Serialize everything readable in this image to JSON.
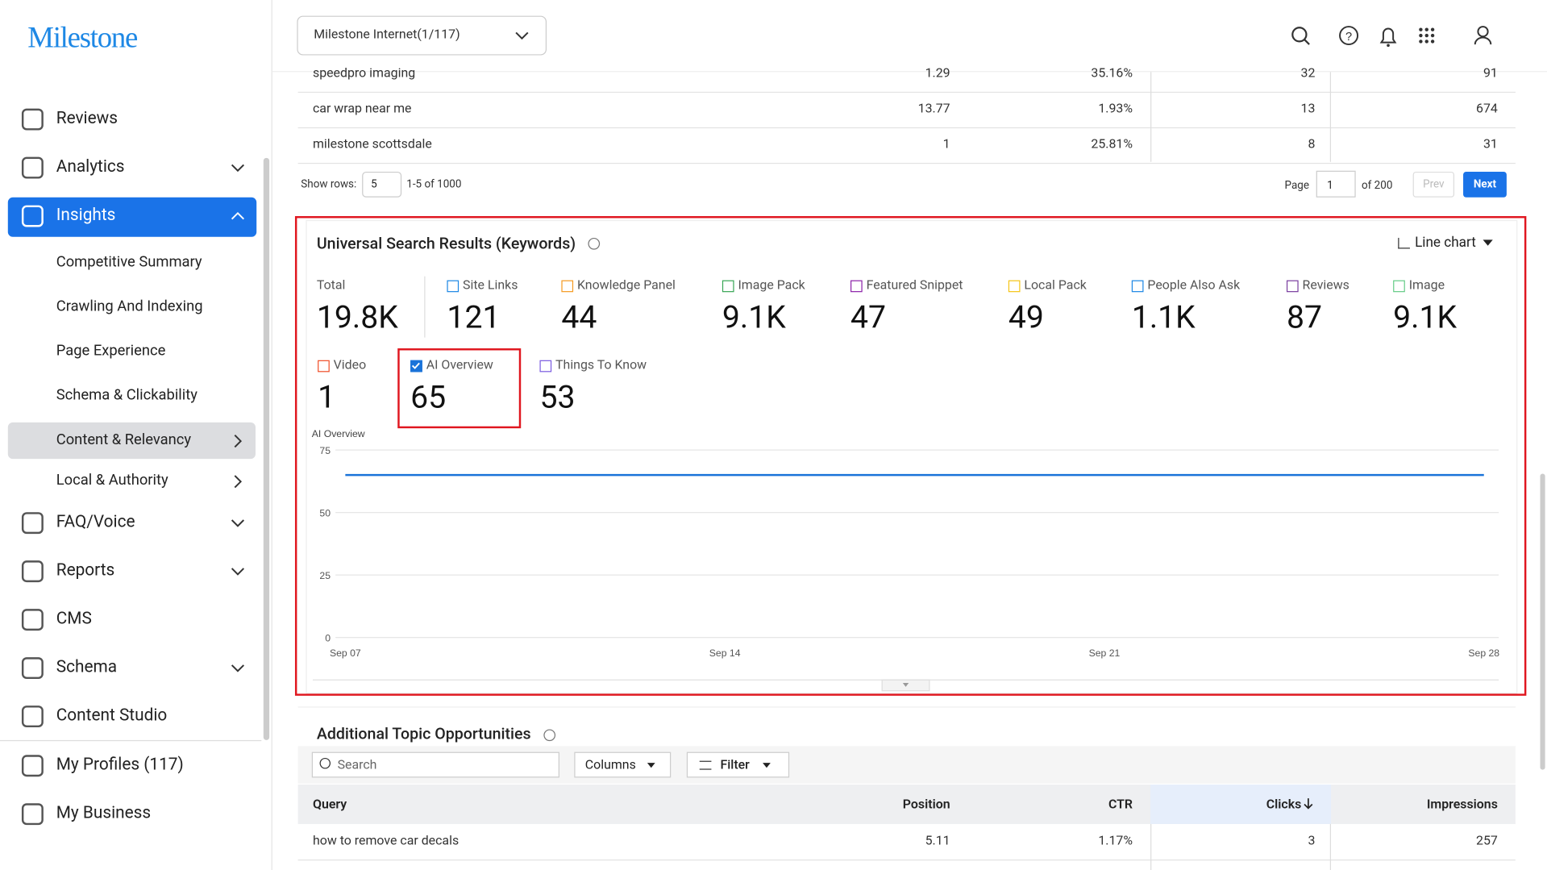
{
  "header": {
    "logo": "Milestone",
    "account": "Milestone Internet(1/117)"
  },
  "sidebar": {
    "items": [
      "Reviews",
      "Analytics",
      "Insights",
      "Competitive Summary",
      "Crawling And Indexing",
      "Page Experience",
      "Schema & Clickability",
      "Content & Relevancy",
      "Local & Authority",
      "FAQ/Voice",
      "Reports",
      "CMS",
      "Schema",
      "Content Studio",
      "My Profiles (117)",
      "My Business"
    ]
  },
  "top_table": {
    "rows": [
      [
        "speedpro imaging",
        "1.29",
        "35.16%",
        "32",
        "91"
      ],
      [
        "car wrap near me",
        "13.77",
        "1.93%",
        "13",
        "674"
      ],
      [
        "milestone scottsdale",
        "1",
        "25.81%",
        "8",
        "31"
      ]
    ],
    "show_rows_label": "Show rows:",
    "rows_value": "5",
    "range": "1-5 of 1000",
    "page_label": "Page",
    "page": "1",
    "of_pages": "of 200",
    "prev": "Prev",
    "next": "Next"
  },
  "widget": {
    "title": "Universal Search Results (Keywords)",
    "view": "Line chart",
    "metrics": [
      {
        "label": "Total",
        "value": "19.8K"
      },
      {
        "label": "Site Links",
        "value": "121",
        "color": "#1e88e5"
      },
      {
        "label": "Knowledge Panel",
        "value": "44",
        "color": "#f59b23"
      },
      {
        "label": "Image Pack",
        "value": "9.1K",
        "color": "#3aa757"
      },
      {
        "label": "Featured Snippet",
        "value": "47",
        "color": "#8e24aa"
      },
      {
        "label": "Local Pack",
        "value": "49",
        "color": "#f5c518"
      },
      {
        "label": "People Also Ask",
        "value": "1.1K",
        "color": "#1e88e5"
      },
      {
        "label": "Reviews",
        "value": "87",
        "color": "#7b3fa0"
      },
      {
        "label": "Image",
        "value": "9.1K",
        "color": "#66cc88"
      },
      {
        "label": "Video",
        "value": "1",
        "color": "#f0502a"
      },
      {
        "label": "AI Overview",
        "value": "65",
        "color": "#1a73d9",
        "checked": true
      },
      {
        "label": "Things To Know",
        "value": "53",
        "color": "#7b5ce0"
      }
    ]
  },
  "chart_data": {
    "type": "line",
    "categories": [
      "Sep 07",
      null,
      null,
      null,
      null,
      null,
      null,
      "Sep 14",
      null,
      null,
      null,
      null,
      null,
      null,
      "Sep 21",
      null,
      null,
      null,
      null,
      null,
      null,
      "Sep 28"
    ],
    "series": [
      {
        "name": "AI Overview",
        "color": "#1a73d9",
        "values": [
          65,
          65,
          65,
          65,
          65,
          65,
          65,
          65,
          65,
          65,
          65,
          65,
          65,
          65,
          65,
          65,
          65,
          65,
          65,
          65,
          65,
          65
        ]
      }
    ],
    "ylim": [
      0,
      75
    ],
    "yticks": [
      0,
      25,
      50,
      75
    ],
    "grid": true
  },
  "bottom": {
    "title": "Additional Topic Opportunities",
    "search": "Search",
    "columns": "Columns",
    "filter": "Filter",
    "headers": [
      "Query",
      "Position",
      "CTR",
      "Clicks",
      "Impressions"
    ],
    "rows": [
      [
        "how to remove car decals",
        "5.11",
        "1.17%",
        "3",
        "257"
      ]
    ]
  }
}
